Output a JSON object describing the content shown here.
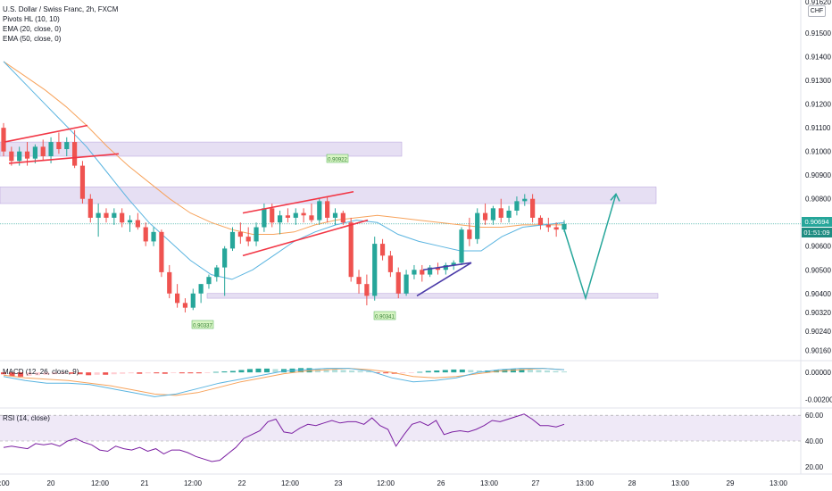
{
  "legend": {
    "title": "U.S. Dollar / Swiss Franc, 2h, FXCM",
    "pivots": "Pivots HL (10, 10)",
    "ema20": "EMA (20, close, 0)",
    "ema50": "EMA (50, close, 0)",
    "macd": "MACD (12, 26, close, 9)",
    "rsi": "RSI (14, close)"
  },
  "price_scale": {
    "currency": "CHF",
    "current_price": "0.90694",
    "countdown": "01:51:09",
    "top_partial": "0.91620"
  },
  "chart_data": [
    {
      "type": "candlestick",
      "y_ticks": [
        "0.91500",
        "0.91400",
        "0.91300",
        "0.91200",
        "0.91100",
        "0.91000",
        "0.90900",
        "0.90800",
        "0.90600",
        "0.90500",
        "0.90400",
        "0.90320",
        "0.90240",
        "0.90160"
      ],
      "y_range": [
        0.9012,
        0.9164
      ],
      "x_ticks": [
        ":00",
        "20",
        "12:00",
        "21",
        "12:00",
        "22",
        "12:00",
        "23",
        "12:00",
        "26",
        "13:00",
        "27",
        "13:00",
        "28",
        "13:00",
        "29",
        "13:00"
      ],
      "pivot_labels": {
        "high": "0.90922",
        "low_1": "0.90337",
        "low_2": "0.90341"
      },
      "ohlc": [
        [
          0.911,
          0.9112,
          0.9098,
          0.91
        ],
        [
          0.91,
          0.9102,
          0.9094,
          0.9096
        ],
        [
          0.9096,
          0.9102,
          0.9094,
          0.91
        ],
        [
          0.91,
          0.9104,
          0.9094,
          0.9097
        ],
        [
          0.9097,
          0.9103,
          0.9095,
          0.9102
        ],
        [
          0.9102,
          0.9105,
          0.9096,
          0.9098
        ],
        [
          0.9098,
          0.9106,
          0.9095,
          0.9104
        ],
        [
          0.9104,
          0.9108,
          0.9099,
          0.9101
        ],
        [
          0.9101,
          0.9106,
          0.9098,
          0.9104
        ],
        [
          0.9104,
          0.9109,
          0.9093,
          0.9094
        ],
        [
          0.9094,
          0.9096,
          0.9078,
          0.908
        ],
        [
          0.908,
          0.9082,
          0.907,
          0.9072
        ],
        [
          0.9072,
          0.9078,
          0.9064,
          0.9074
        ],
        [
          0.9074,
          0.9076,
          0.907,
          0.9072
        ],
        [
          0.9072,
          0.9076,
          0.9069,
          0.9074
        ],
        [
          0.9074,
          0.9076,
          0.9068,
          0.907
        ],
        [
          0.907,
          0.9073,
          0.9066,
          0.9071
        ],
        [
          0.9071,
          0.9074,
          0.9067,
          0.9068
        ],
        [
          0.9068,
          0.907,
          0.906,
          0.9062
        ],
        [
          0.9062,
          0.9068,
          0.906,
          0.9066
        ],
        [
          0.9066,
          0.9067,
          0.9047,
          0.9049
        ],
        [
          0.9049,
          0.9052,
          0.9038,
          0.904
        ],
        [
          0.904,
          0.9044,
          0.9034,
          0.9036
        ],
        [
          0.9036,
          0.9038,
          0.9032,
          0.9034
        ],
        [
          0.9034,
          0.9042,
          0.9033,
          0.904
        ],
        [
          0.904,
          0.9044,
          0.9036,
          0.9044
        ],
        [
          0.9044,
          0.9048,
          0.9042,
          0.9047
        ],
        [
          0.9047,
          0.9052,
          0.9045,
          0.9051
        ],
        [
          0.9051,
          0.906,
          0.9039,
          0.9059
        ],
        [
          0.9059,
          0.9068,
          0.9058,
          0.9066
        ],
        [
          0.9066,
          0.907,
          0.9061,
          0.9064
        ],
        [
          0.9064,
          0.9068,
          0.906,
          0.9062
        ],
        [
          0.9062,
          0.907,
          0.906,
          0.9068
        ],
        [
          0.9068,
          0.9078,
          0.9066,
          0.9076
        ],
        [
          0.9076,
          0.9078,
          0.9068,
          0.907
        ],
        [
          0.907,
          0.9075,
          0.9065,
          0.9073
        ],
        [
          0.9073,
          0.9076,
          0.907,
          0.9072
        ],
        [
          0.9072,
          0.9076,
          0.9069,
          0.9074
        ],
        [
          0.9074,
          0.9076,
          0.907,
          0.9073
        ],
        [
          0.9073,
          0.9078,
          0.907,
          0.9071
        ],
        [
          0.9071,
          0.908,
          0.9069,
          0.9079
        ],
        [
          0.9079,
          0.9081,
          0.907,
          0.9072
        ],
        [
          0.9072,
          0.9076,
          0.9069,
          0.9074
        ],
        [
          0.9074,
          0.9075,
          0.9069,
          0.907
        ],
        [
          0.907,
          0.9072,
          0.9045,
          0.9047
        ],
        [
          0.9047,
          0.905,
          0.904,
          0.9044
        ],
        [
          0.9044,
          0.9048,
          0.9035,
          0.9039
        ],
        [
          0.9039,
          0.9064,
          0.9037,
          0.9061
        ],
        [
          0.9061,
          0.9063,
          0.9054,
          0.9056
        ],
        [
          0.9056,
          0.9058,
          0.9047,
          0.9049
        ],
        [
          0.9049,
          0.9051,
          0.9038,
          0.904
        ],
        [
          0.904,
          0.905,
          0.9039,
          0.9048
        ],
        [
          0.9048,
          0.9052,
          0.9046,
          0.905
        ],
        [
          0.905,
          0.9052,
          0.9045,
          0.9048
        ],
        [
          0.9048,
          0.9052,
          0.9047,
          0.9051
        ],
        [
          0.9051,
          0.9053,
          0.9048,
          0.905
        ],
        [
          0.905,
          0.9053,
          0.9048,
          0.9052
        ],
        [
          0.9052,
          0.9054,
          0.905,
          0.9053
        ],
        [
          0.9053,
          0.9068,
          0.9052,
          0.9067
        ],
        [
          0.9067,
          0.9072,
          0.906,
          0.9063
        ],
        [
          0.9063,
          0.9076,
          0.9061,
          0.9074
        ],
        [
          0.9074,
          0.9078,
          0.9069,
          0.9071
        ],
        [
          0.9071,
          0.9077,
          0.9069,
          0.9076
        ],
        [
          0.9076,
          0.908,
          0.907,
          0.9072
        ],
        [
          0.9072,
          0.9077,
          0.907,
          0.9075
        ],
        [
          0.9075,
          0.9081,
          0.9073,
          0.9079
        ],
        [
          0.9079,
          0.9082,
          0.9077,
          0.908
        ],
        [
          0.908,
          0.9082,
          0.907,
          0.9072
        ],
        [
          0.9072,
          0.9073,
          0.9067,
          0.9069
        ],
        [
          0.9069,
          0.9072,
          0.9066,
          0.9068
        ],
        [
          0.9068,
          0.907,
          0.9064,
          0.9067
        ],
        [
          0.9067,
          0.9071,
          0.9066,
          0.90694
        ]
      ],
      "ema20": [
        0.9138,
        0.9129,
        0.912,
        0.9111,
        0.9102,
        0.9091,
        0.908,
        0.907,
        0.9062,
        0.9054,
        0.9048,
        0.9046,
        0.905,
        0.9056,
        0.9062,
        0.9066,
        0.9069,
        0.9071,
        0.907,
        0.9065,
        0.9062,
        0.906,
        0.9058,
        0.9058,
        0.9064,
        0.9068,
        0.9069,
        0.907
      ],
      "ema50": [
        0.9138,
        0.9132,
        0.9126,
        0.9119,
        0.9111,
        0.9102,
        0.9094,
        0.9087,
        0.908,
        0.9074,
        0.907,
        0.9067,
        0.9065,
        0.9065,
        0.9066,
        0.9069,
        0.9071,
        0.9072,
        0.9073,
        0.9072,
        0.9071,
        0.907,
        0.9069,
        0.9068,
        0.9068,
        0.9069,
        0.9069,
        0.9069
      ],
      "zones": [
        [
          0.9104,
          0.9098
        ],
        [
          0.9085,
          0.9078
        ],
        [
          0.904,
          0.9038
        ]
      ],
      "projection": [
        0.90694,
        0.9038,
        0.9082
      ]
    },
    {
      "type": "histogram",
      "name": "MACD (12, 26, close, 9)",
      "y_ticks": [
        "0.00000",
        "-0.00200"
      ],
      "histogram": [
        -4,
        -8,
        -9,
        -7,
        -6,
        -5,
        -4,
        -3,
        -3,
        -4,
        -6,
        -5,
        -5,
        -4,
        -3,
        -2,
        -3,
        -2,
        -2,
        -3,
        -1,
        -2,
        -2,
        -2,
        -1,
        1,
        2,
        3,
        5,
        7,
        8,
        8,
        7,
        7,
        8,
        9,
        9,
        8,
        7,
        6,
        5,
        4,
        3,
        2,
        -1,
        -2,
        -3,
        -2,
        -1,
        1,
        3,
        4,
        5,
        6,
        6,
        5,
        4,
        4,
        5,
        6,
        7,
        7,
        6,
        5,
        4,
        3,
        2
      ],
      "macd_line": [
        -0.3,
        -0.6,
        -0.8,
        -0.8,
        -0.9,
        -1.2,
        -1.5,
        -1.8,
        -1.6,
        -1.2,
        -0.8,
        -0.5,
        -0.2,
        0.1,
        0.2,
        0.3,
        0.3,
        0.1,
        -0.4,
        -0.7,
        -0.6,
        -0.4,
        0.0,
        0.2,
        0.3,
        0.3,
        0.2
      ],
      "signal_line": [
        -0.2,
        -0.4,
        -0.5,
        -0.6,
        -0.8,
        -1.0,
        -1.3,
        -1.6,
        -1.7,
        -1.5,
        -1.1,
        -0.7,
        -0.4,
        -0.1,
        0.1,
        0.2,
        0.3,
        0.2,
        0.0,
        -0.3,
        -0.4,
        -0.3,
        -0.1,
        0.1,
        0.2,
        0.3,
        0.2
      ],
      "y_range": [
        -2.5,
        0.8
      ]
    },
    {
      "type": "line",
      "name": "RSI (14, close)",
      "y_ticks": [
        "60.00",
        "40.00",
        "20.00"
      ],
      "ylim": [
        15,
        65
      ],
      "band": [
        40,
        60
      ],
      "values": [
        35,
        36,
        35,
        34,
        38,
        37,
        38,
        36,
        40,
        42,
        39,
        37,
        33,
        32,
        36,
        34,
        33,
        35,
        32,
        34,
        30,
        33,
        33,
        31,
        28,
        26,
        24,
        25,
        30,
        35,
        42,
        45,
        48,
        55,
        57,
        47,
        46,
        50,
        53,
        52,
        54,
        56,
        54,
        55,
        55,
        53,
        58,
        52,
        49,
        36,
        45,
        53,
        55,
        52,
        56,
        45,
        47,
        48,
        47,
        49,
        52,
        56,
        55,
        57,
        59,
        61,
        57,
        52,
        52,
        51,
        53
      ]
    }
  ]
}
